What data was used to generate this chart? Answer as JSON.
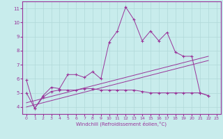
{
  "xlabel": "Windchill (Refroidissement éolien,°C)",
  "background_color": "#c8ecec",
  "grid_color": "#b0d8d8",
  "line_color": "#993399",
  "xlim": [
    -0.5,
    23.5
  ],
  "ylim": [
    3.5,
    11.5
  ],
  "yticks": [
    4,
    5,
    6,
    7,
    8,
    9,
    10,
    11
  ],
  "xticks": [
    0,
    1,
    2,
    3,
    4,
    5,
    6,
    7,
    8,
    9,
    10,
    11,
    12,
    13,
    14,
    15,
    16,
    17,
    18,
    19,
    20,
    21,
    22,
    23
  ],
  "line1_x": [
    0,
    1,
    2,
    3,
    4,
    5,
    6,
    7,
    8,
    9,
    10,
    11,
    12,
    13,
    14,
    15,
    16,
    17,
    18,
    19,
    20,
    21,
    22
  ],
  "line1_y": [
    5.9,
    3.9,
    4.8,
    5.4,
    5.3,
    6.3,
    6.3,
    6.1,
    6.5,
    6.0,
    8.6,
    9.4,
    11.1,
    10.2,
    8.7,
    9.4,
    8.7,
    9.3,
    7.9,
    7.6,
    7.6,
    5.0,
    4.8
  ],
  "line2_x": [
    0,
    1,
    2,
    3,
    4,
    5,
    6,
    7,
    8,
    9,
    10,
    11,
    12,
    13,
    14,
    15,
    16,
    17,
    18,
    19,
    20,
    21,
    22
  ],
  "line2_y": [
    5.0,
    3.9,
    4.7,
    5.1,
    5.2,
    5.2,
    5.2,
    5.3,
    5.3,
    5.2,
    5.2,
    5.2,
    5.2,
    5.2,
    5.1,
    5.0,
    5.0,
    5.0,
    5.0,
    5.0,
    5.0,
    5.0,
    4.8
  ],
  "line3_x": [
    0,
    22
  ],
  "line3_y": [
    4.3,
    7.6
  ],
  "line4_x": [
    0,
    22
  ],
  "line4_y": [
    4.0,
    7.3
  ]
}
